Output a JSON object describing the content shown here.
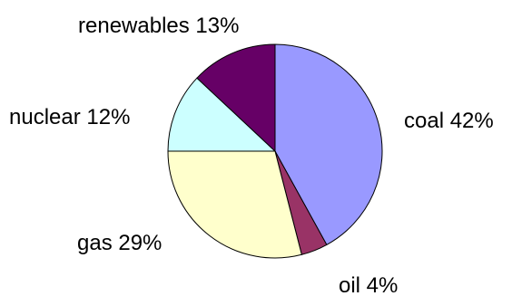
{
  "chart_data": {
    "type": "pie",
    "title": "",
    "start_angle_deg": 0,
    "direction": "clockwise",
    "slices": [
      {
        "label": "coal",
        "value": 42,
        "display": "coal 42%",
        "color": "#9999ff"
      },
      {
        "label": "oil",
        "value": 4,
        "display": "oil 4%",
        "color": "#993366"
      },
      {
        "label": "gas",
        "value": 29,
        "display": "gas 29%",
        "color": "#ffffcc"
      },
      {
        "label": "nuclear",
        "value": 12,
        "display": "nuclear 12%",
        "color": "#ccffff"
      },
      {
        "label": "renewables",
        "value": 13,
        "display": "renewables 13%",
        "color": "#660066"
      }
    ],
    "legend": "none"
  }
}
